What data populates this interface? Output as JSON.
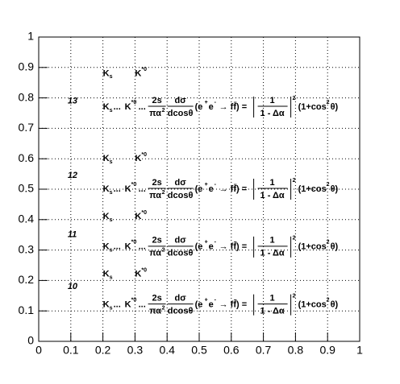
{
  "chart_data": {
    "type": "text",
    "xlim": [
      0,
      1
    ],
    "ylim": [
      0,
      1
    ],
    "xticks": [
      0,
      0.1,
      0.2,
      0.3,
      0.4,
      0.5,
      0.6,
      0.7,
      0.8,
      0.9,
      1
    ],
    "yticks": [
      0,
      0.1,
      0.2,
      0.3,
      0.4,
      0.5,
      0.6,
      0.7,
      0.8,
      0.9,
      1
    ],
    "grid": true,
    "symbols": {
      "k": "K",
      "s": "s",
      "star0": "*0"
    },
    "formula": {
      "dots": "...",
      "num1": "2s",
      "den1": "πα",
      "sq": "2",
      "num2": "dσ",
      "den2": "dcosθ",
      "open": "(e",
      "plus": "+",
      "e": "e",
      "minus": "-",
      "arrow": "→ ff̄) =",
      "num3": "1",
      "den3": "1 - Δα",
      "tail": "(1+cos",
      "theta": "θ)"
    },
    "annotations": [
      {
        "text": "13",
        "x": 0.09,
        "y": 0.79,
        "symbols_y": 0.88,
        "formula_y": 0.77
      },
      {
        "text": "12",
        "x": 0.09,
        "y": 0.545,
        "symbols_y": 0.6,
        "formula_y": 0.5
      },
      {
        "text": "11",
        "x": 0.09,
        "y": 0.35,
        "symbols_y": 0.41,
        "formula_y": 0.31
      },
      {
        "text": "10",
        "x": 0.09,
        "y": 0.18,
        "symbols_y": 0.22,
        "formula_y": 0.12
      }
    ]
  }
}
